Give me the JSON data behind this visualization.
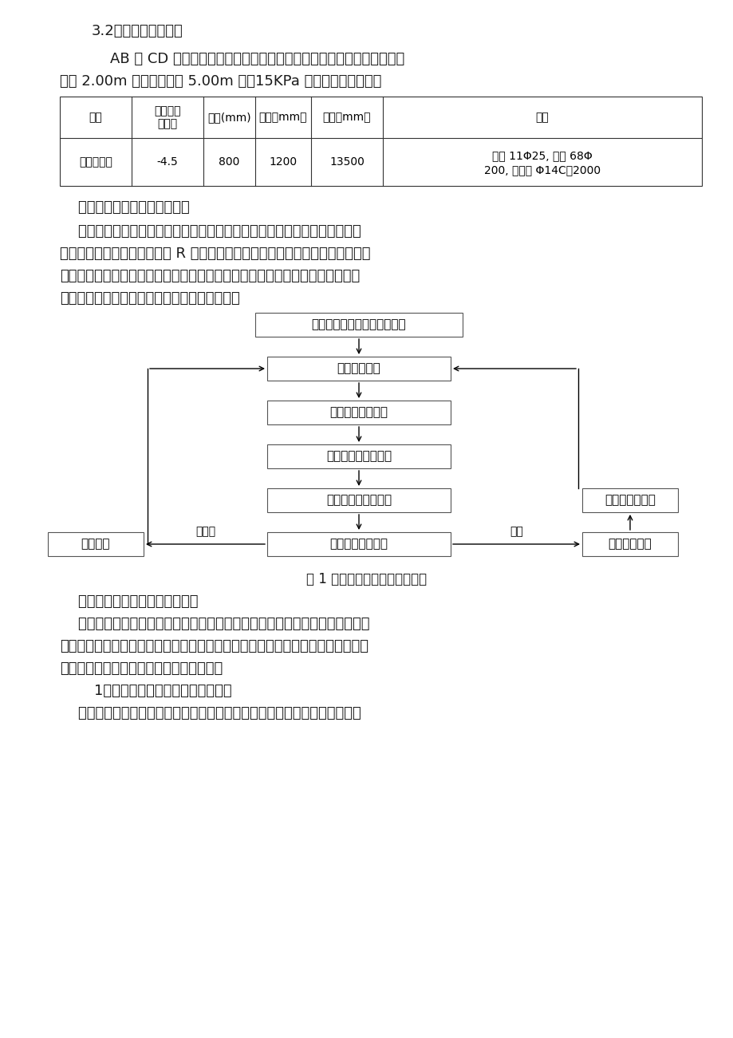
{
  "bg_color": "#ffffff",
  "lm": 75,
  "fs_body": 13,
  "fs_small": 11,
  "fs_table": 10,
  "fs_flow": 11,
  "fs_caption": 12,
  "line1": "3.2、框加内支撑支护",
  "line2": "    AB 及 CD 段因场地狭小，难以施工锶杆，故采用框加内支撑方法支护，",
  "line3": "坡顶 2.00m 以外异样考虑 5.00m 宽，15KPa 局部荷载。支护框：",
  "table_headers": [
    "称号",
    "框顶标高\n（米）",
    "直径(mm)",
    "间距（mm）",
    "长度（mm）",
    "配筋"
  ],
  "table_col_w": [
    90,
    90,
    65,
    70,
    90,
    400
  ],
  "table_row": [
    "钒孔灘注框",
    "-4.5",
    "800",
    "1200",
    "13500",
    "纵筋 11Φ25, 简筋 68Φ200, 加强筋 Φ14C｜2000"
  ],
  "table_row2": [
    "纵筋 11Φ25, 简筋 68Φ",
    "200, 加强筋 Φ14C｜2000"
  ],
  "sec3": "    （三）、应急预案工作流程图",
  "para3a": "    根据本工程的特点及施工工艺的实践状况，仔细的组织了对风险源和环境要",
  "para3b": "素的辨认和评价，特制定本项 R 发生紧急状况或事故的应急措施，开展应急知识",
  "para3c": "教育和应急演练，进步现场操作人员应急才能，减少突发事情形成的损害和不良",
  "para3d": "环境影响。其应急预备和呼应工作程序见下图：",
  "box1": "风险源及环境要素辨识、评价",
  "box2": "编制应急预案",
  "box3": "成立抗险指导小组",
  "box4": "组建抗险队、救护车",
  "box5": "装备应急物资、设备",
  "box6": "应急知识教育培训",
  "box_left": "定期评审",
  "box_right": "实施应急预案",
  "box_review": "进行评审、修订",
  "label_no": "未发生",
  "label_yes": "发生",
  "caption": "图 1 应急预备和呼应工作程序图",
  "sec4": "    （四）突发事情风险分析和预防",
  "para4a": "    为确保正常施工，预防突发事情以及某些预想不到的、不可抗拓的事情发生，",
  "para4b": "事前有充足的技术措施预备、抗险物资的储备，最大程度地减少人员伤亡、国家财",
  "para4c": "产和经济损失，必须进行风险分析和预防。",
  "sec5": "    1、突发事情、紧急状况及风险分析",
  "para5": "    根据本工程施工特点及复杂的地质状况，在辨识、分析评价施工中风险要素"
}
